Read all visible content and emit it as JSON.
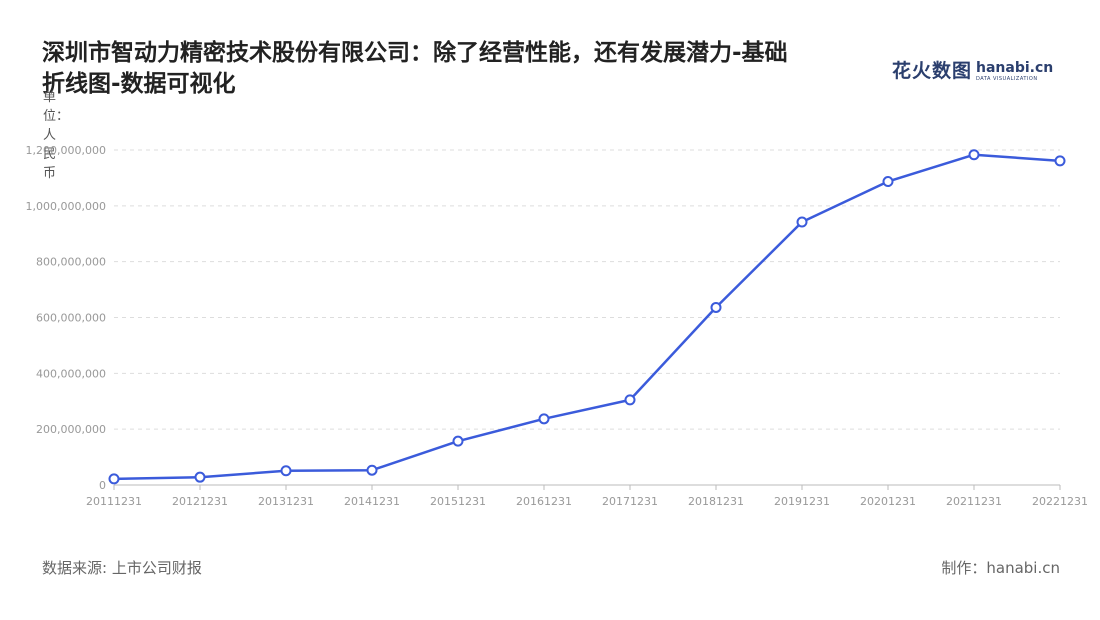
{
  "title": "深圳市智动力精密技术股份有限公司：除了经营性能，还有发展潜力-基础\n折线图-数据可视化",
  "logo": {
    "cn": "花火数图",
    "en": "hanabi.cn",
    "sub": "DATA VISUALIZATION"
  },
  "unit_label": "单位：人民币",
  "source": "数据来源: 上市公司财报",
  "credit": "制作：hanabi.cn",
  "colors": {
    "line": "#3b5bdb",
    "grid": "#dddddd",
    "axis_text": "#999999"
  },
  "chart_data": {
    "type": "line",
    "title": "深圳市智动力精密技术股份有限公司：除了经营性能，还有发展潜力-基础折线图-数据可视化",
    "ylabel": "单位：人民币",
    "categories": [
      "20111231",
      "20121231",
      "20131231",
      "20141231",
      "20151231",
      "20161231",
      "20171231",
      "20181231",
      "20191231",
      "20201231",
      "20211231",
      "20221231"
    ],
    "values": [
      22000000,
      28000000,
      51000000,
      53000000,
      157000000,
      237000000,
      305000000,
      636000000,
      942000000,
      1087000000,
      1183000000,
      1161000000
    ],
    "yticks": [
      0,
      200000000,
      400000000,
      600000000,
      800000000,
      1000000000,
      1200000000
    ],
    "ytick_labels": [
      "0",
      "200,000,000",
      "400,000,000",
      "600,000,000",
      "800,000,000",
      "1,000,000,000",
      "1,200,000,000"
    ],
    "ylim": [
      0,
      1200000000
    ],
    "grid": true,
    "legend": "none"
  }
}
